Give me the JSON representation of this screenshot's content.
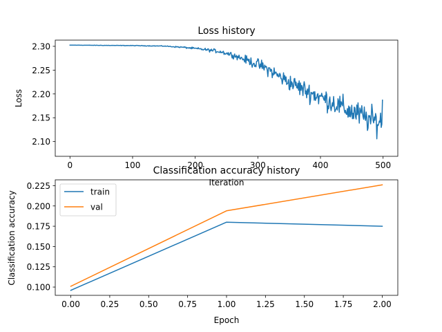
{
  "chart_data": [
    {
      "type": "line",
      "title": "Loss history",
      "xlabel": "Iteration",
      "ylabel": "Loss",
      "xlim": [
        -23.5,
        523.5
      ],
      "ylim": [
        2.069,
        2.313
      ],
      "xticks": [
        0,
        100,
        200,
        300,
        400,
        500
      ],
      "yticks": [
        2.1,
        2.15,
        2.2,
        2.25,
        2.3
      ],
      "xtick_labels": [
        "0",
        "100",
        "200",
        "300",
        "400",
        "500"
      ],
      "ytick_labels": [
        "2.10",
        "2.15",
        "2.20",
        "2.25",
        "2.30"
      ],
      "grid": false,
      "series": [
        {
          "color": "#1f77b4",
          "x_start": 0,
          "x_step": 1,
          "profile": [
            [
              0,
              2.3025
            ],
            [
              100,
              2.3015
            ],
            [
              150,
              2.3005
            ],
            [
              180,
              2.298
            ],
            [
              210,
              2.294
            ],
            [
              240,
              2.289
            ],
            [
              260,
              2.282
            ],
            [
              280,
              2.272
            ],
            [
              300,
              2.262
            ],
            [
              320,
              2.249
            ],
            [
              340,
              2.232
            ],
            [
              360,
              2.218
            ],
            [
              380,
              2.205
            ],
            [
              400,
              2.193
            ],
            [
              420,
              2.182
            ],
            [
              440,
              2.168
            ],
            [
              460,
              2.157
            ],
            [
              480,
              2.145
            ],
            [
              499,
              2.14
            ]
          ],
          "noise_profile": [
            [
              0,
              0.0002
            ],
            [
              150,
              0.0007
            ],
            [
              200,
              0.002
            ],
            [
              240,
              0.004
            ],
            [
              270,
              0.006
            ],
            [
              300,
              0.011
            ],
            [
              350,
              0.016
            ],
            [
              400,
              0.02
            ],
            [
              450,
              0.024
            ],
            [
              499,
              0.027
            ]
          ],
          "y_min": 2.07,
          "y_max": 2.3025,
          "y_last": 2.187
        }
      ]
    },
    {
      "type": "line",
      "title": "Classification accuracy history",
      "xlabel": "Epoch",
      "ylabel": "Classification accuracy",
      "xlim": [
        -0.1,
        2.1
      ],
      "ylim": [
        0.0898,
        0.2322
      ],
      "xticks": [
        0,
        0.25,
        0.5,
        0.75,
        1.0,
        1.25,
        1.5,
        1.75,
        2.0
      ],
      "yticks": [
        0.1,
        0.125,
        0.15,
        0.175,
        0.2,
        0.225
      ],
      "xtick_labels": [
        "0.00",
        "0.25",
        "0.50",
        "0.75",
        "1.00",
        "1.25",
        "1.50",
        "1.75",
        "2.00"
      ],
      "ytick_labels": [
        "0.100",
        "0.125",
        "0.150",
        "0.175",
        "0.200",
        "0.225"
      ],
      "grid": false,
      "legend": "upper-left",
      "series": [
        {
          "name": "train",
          "color": "#1f77b4",
          "x": [
            0,
            1,
            2
          ],
          "y": [
            0.096,
            0.18,
            0.175
          ]
        },
        {
          "name": "val",
          "color": "#ff7f0e",
          "x": [
            0,
            1,
            2
          ],
          "y": [
            0.101,
            0.194,
            0.226
          ]
        }
      ]
    }
  ]
}
